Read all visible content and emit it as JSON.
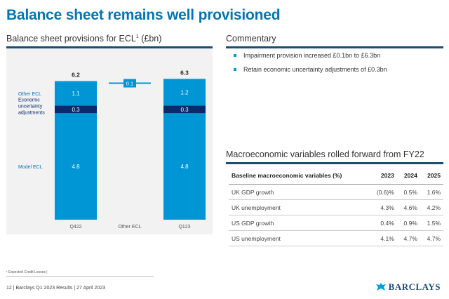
{
  "title": "Balance sheet remains well provisioned",
  "left_panel": {
    "heading": "Balance sheet provisions for ECL",
    "heading_sup": "1",
    "heading_unit": "(£bn)"
  },
  "chart_data": {
    "type": "bar",
    "stacked": true,
    "categories": [
      "Q422",
      "Other ECL",
      "Q123"
    ],
    "series": [
      {
        "name": "Model ECL",
        "values": [
          4.8,
          null,
          4.8
        ],
        "color": "#0096d6"
      },
      {
        "name": "Economic uncertainty adjustments",
        "values": [
          0.3,
          null,
          0.3
        ],
        "color": "#0a2a6b"
      },
      {
        "name": "Other ECL",
        "values": [
          1.1,
          0.1,
          1.2
        ],
        "color": "#0096d6"
      }
    ],
    "totals": [
      6.2,
      null,
      6.3
    ],
    "series_labels": {
      "other": "Other ECL",
      "econ": [
        "Economic",
        "uncertainty",
        "adjustments"
      ],
      "model": "Model ECL"
    },
    "value_labels": {
      "q422": {
        "model": "4.8",
        "econ": "0.3",
        "other": "1.1",
        "total": "6.2"
      },
      "bridge": {
        "other": "0.1"
      },
      "q123": {
        "model": "4.8",
        "econ": "0.3",
        "other": "1.2",
        "total": "6.3"
      }
    },
    "x_labels": [
      "Q422",
      "Other ECL",
      "Q123"
    ]
  },
  "commentary": {
    "heading": "Commentary",
    "bullets": [
      "Impairment provision increased £0.1bn to £6.3bn",
      "Retain economic uncertainty adjustments of £0.3bn"
    ]
  },
  "macro": {
    "heading": "Macroeconomic variables rolled forward from FY22",
    "header": [
      "Baseline macroeconomic variables (%)",
      "2023",
      "2024",
      "2025"
    ],
    "rows": [
      [
        "UK GDP growth",
        "(0.6)%",
        "0.5%",
        "1.6%"
      ],
      [
        "UK unemployment",
        "4.3%",
        "4.6%",
        "4.2%"
      ],
      [
        "US GDP growth",
        "0.4%",
        "0.9%",
        "1.5%"
      ],
      [
        "US unemployment",
        "4.1%",
        "4.7%",
        "4.7%"
      ]
    ]
  },
  "footnote": "¹ Expected Credit Losses |",
  "footer": "12 | Barclays Q1 2023 Results | 27 April 2023",
  "logo_text": "BARCLAYS",
  "colors": {
    "accent": "#0076b6",
    "bar": "#0096d6",
    "dark_bar": "#0a2a6b",
    "rule": "#1b4f72"
  }
}
